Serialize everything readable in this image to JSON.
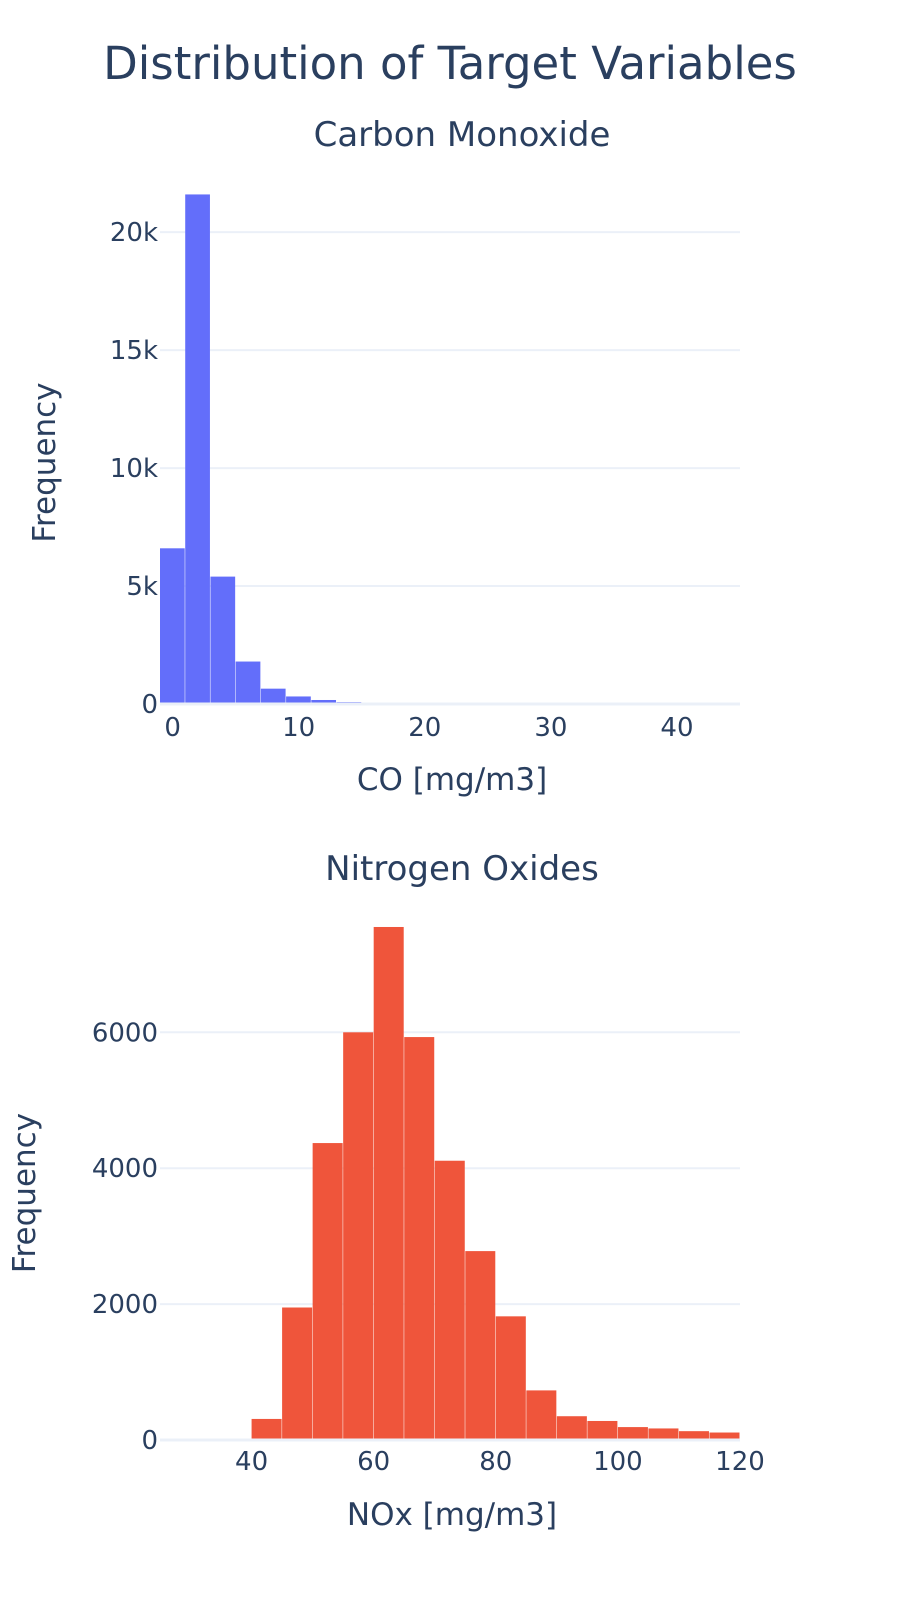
{
  "title": "Distribution of Target Variables",
  "colors": {
    "text": "#2a3f5f",
    "grid": "#ebf0f8",
    "co": "#636efa",
    "nox": "#ef553b"
  },
  "chart_data": [
    {
      "type": "bar",
      "title": "Carbon Monoxide",
      "xlabel": "CO [mg/m3]",
      "ylabel": "Frequency",
      "xlim": [
        -1,
        45
      ],
      "ylim": [
        0,
        22000
      ],
      "xticks": [
        0,
        10,
        20,
        30,
        40
      ],
      "xtick_labels": [
        "0",
        "10",
        "20",
        "30",
        "40"
      ],
      "yticks": [
        0,
        5000,
        10000,
        15000,
        20000
      ],
      "ytick_labels": [
        "0",
        "5k",
        "10k",
        "15k",
        "20k"
      ],
      "bin_width": 2,
      "bins": [
        {
          "x0": -1,
          "x1": 1,
          "count": 6600
        },
        {
          "x0": 1,
          "x1": 3,
          "count": 21600
        },
        {
          "x0": 3,
          "x1": 5,
          "count": 5400
        },
        {
          "x0": 5,
          "x1": 7,
          "count": 1800
        },
        {
          "x0": 7,
          "x1": 9,
          "count": 650
        },
        {
          "x0": 9,
          "x1": 11,
          "count": 320
        },
        {
          "x0": 11,
          "x1": 13,
          "count": 170
        },
        {
          "x0": 13,
          "x1": 15,
          "count": 80
        },
        {
          "x0": 15,
          "x1": 17,
          "count": 35
        },
        {
          "x0": 17,
          "x1": 19,
          "count": 15
        },
        {
          "x0": 19,
          "x1": 21,
          "count": 8
        },
        {
          "x0": 21,
          "x1": 23,
          "count": 4
        },
        {
          "x0": 23,
          "x1": 25,
          "count": 2
        },
        {
          "x0": 25,
          "x1": 27,
          "count": 1
        }
      ]
    },
    {
      "type": "bar",
      "title": "Nitrogen Oxides",
      "xlabel": "NOx [mg/m3]",
      "ylabel": "Frequency",
      "xlim": [
        25,
        120
      ],
      "ylim": [
        0,
        7800
      ],
      "xticks": [
        40,
        60,
        80,
        100,
        120
      ],
      "xtick_labels": [
        "40",
        "60",
        "80",
        "100",
        "120"
      ],
      "yticks": [
        0,
        2000,
        4000,
        6000
      ],
      "ytick_labels": [
        "0",
        "2000",
        "4000",
        "6000"
      ],
      "bin_width": 5,
      "bins": [
        {
          "x0": 35,
          "x1": 40,
          "count": 15
        },
        {
          "x0": 40,
          "x1": 45,
          "count": 310
        },
        {
          "x0": 45,
          "x1": 50,
          "count": 1950
        },
        {
          "x0": 50,
          "x1": 55,
          "count": 4370
        },
        {
          "x0": 55,
          "x1": 60,
          "count": 6000
        },
        {
          "x0": 60,
          "x1": 65,
          "count": 7550
        },
        {
          "x0": 65,
          "x1": 70,
          "count": 5930
        },
        {
          "x0": 70,
          "x1": 75,
          "count": 4110
        },
        {
          "x0": 75,
          "x1": 80,
          "count": 2780
        },
        {
          "x0": 80,
          "x1": 85,
          "count": 1820
        },
        {
          "x0": 85,
          "x1": 90,
          "count": 730
        },
        {
          "x0": 90,
          "x1": 95,
          "count": 350
        },
        {
          "x0": 95,
          "x1": 100,
          "count": 280
        },
        {
          "x0": 100,
          "x1": 105,
          "count": 190
        },
        {
          "x0": 105,
          "x1": 110,
          "count": 170
        },
        {
          "x0": 110,
          "x1": 115,
          "count": 130
        },
        {
          "x0": 115,
          "x1": 120,
          "count": 110
        }
      ]
    }
  ]
}
